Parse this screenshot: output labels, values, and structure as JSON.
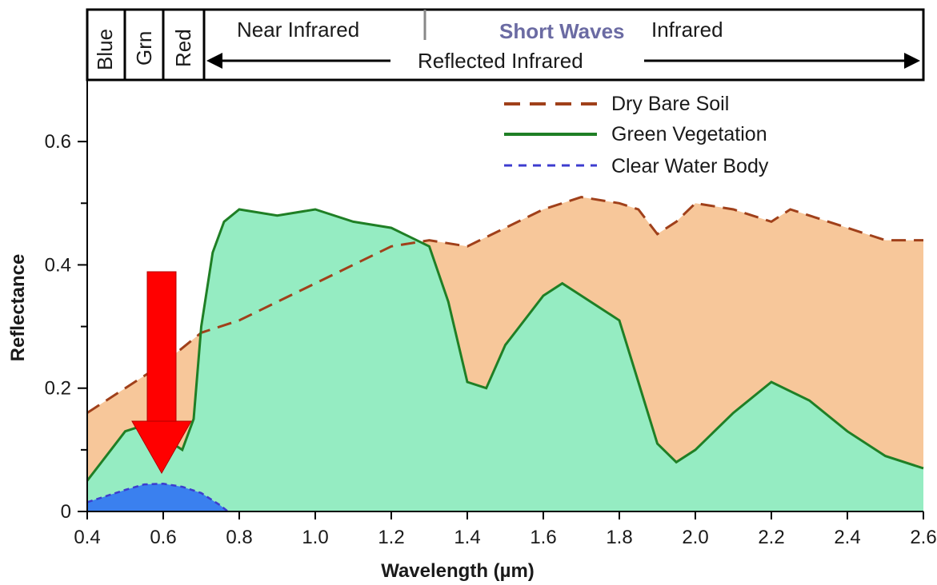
{
  "chart_data": {
    "type": "area",
    "xlabel": "Wavelength (µm)",
    "ylabel": "Reflectance",
    "xlim": [
      0.4,
      2.6
    ],
    "ylim": [
      0,
      0.7
    ],
    "x_ticks": [
      "0.4",
      "0.6",
      "0.8",
      "1.0",
      "1.2",
      "1.4",
      "1.6",
      "1.8",
      "2.0",
      "2.2",
      "2.4",
      "2.6"
    ],
    "y_ticks": [
      "0",
      "0.2",
      "0.4",
      "0.6"
    ],
    "legend_position": "top-right",
    "legend_labels": [
      "Dry Bare Soil",
      "Green Vegetation",
      "Clear Water Body"
    ],
    "series": [
      {
        "name": "Dry Bare Soil",
        "color": "#a0401a",
        "fill": "#f7c79a",
        "style": "long-dash",
        "points": [
          [
            0.4,
            0.16
          ],
          [
            0.5,
            0.2
          ],
          [
            0.6,
            0.24
          ],
          [
            0.7,
            0.29
          ],
          [
            0.8,
            0.31
          ],
          [
            0.9,
            0.34
          ],
          [
            1.0,
            0.37
          ],
          [
            1.1,
            0.4
          ],
          [
            1.2,
            0.43
          ],
          [
            1.3,
            0.44
          ],
          [
            1.4,
            0.43
          ],
          [
            1.5,
            0.46
          ],
          [
            1.6,
            0.49
          ],
          [
            1.7,
            0.51
          ],
          [
            1.8,
            0.5
          ],
          [
            1.85,
            0.49
          ],
          [
            1.9,
            0.45
          ],
          [
            1.95,
            0.47
          ],
          [
            2.0,
            0.5
          ],
          [
            2.1,
            0.49
          ],
          [
            2.2,
            0.47
          ],
          [
            2.25,
            0.49
          ],
          [
            2.3,
            0.48
          ],
          [
            2.4,
            0.46
          ],
          [
            2.5,
            0.44
          ],
          [
            2.6,
            0.44
          ]
        ]
      },
      {
        "name": "Green Vegetation",
        "color": "#1f7f25",
        "fill": "#95ecc2",
        "style": "solid",
        "points": [
          [
            0.4,
            0.05
          ],
          [
            0.45,
            0.09
          ],
          [
            0.5,
            0.13
          ],
          [
            0.55,
            0.14
          ],
          [
            0.6,
            0.12
          ],
          [
            0.65,
            0.1
          ],
          [
            0.68,
            0.15
          ],
          [
            0.7,
            0.3
          ],
          [
            0.73,
            0.42
          ],
          [
            0.76,
            0.47
          ],
          [
            0.8,
            0.49
          ],
          [
            0.9,
            0.48
          ],
          [
            1.0,
            0.49
          ],
          [
            1.1,
            0.47
          ],
          [
            1.2,
            0.46
          ],
          [
            1.3,
            0.43
          ],
          [
            1.35,
            0.34
          ],
          [
            1.4,
            0.21
          ],
          [
            1.45,
            0.2
          ],
          [
            1.5,
            0.27
          ],
          [
            1.6,
            0.35
          ],
          [
            1.65,
            0.37
          ],
          [
            1.7,
            0.35
          ],
          [
            1.8,
            0.31
          ],
          [
            1.85,
            0.21
          ],
          [
            1.9,
            0.11
          ],
          [
            1.95,
            0.08
          ],
          [
            2.0,
            0.1
          ],
          [
            2.1,
            0.16
          ],
          [
            2.2,
            0.21
          ],
          [
            2.3,
            0.18
          ],
          [
            2.4,
            0.13
          ],
          [
            2.5,
            0.09
          ],
          [
            2.6,
            0.07
          ]
        ]
      },
      {
        "name": "Clear Water Body",
        "color": "#3d3ccf",
        "fill": "#3a80ef",
        "style": "short-dash",
        "points": [
          [
            0.4,
            0.015
          ],
          [
            0.45,
            0.025
          ],
          [
            0.5,
            0.035
          ],
          [
            0.55,
            0.044
          ],
          [
            0.6,
            0.045
          ],
          [
            0.65,
            0.04
          ],
          [
            0.7,
            0.03
          ],
          [
            0.75,
            0.01
          ],
          [
            0.77,
            0.0
          ]
        ]
      }
    ],
    "bands": [
      {
        "label": "Blue"
      },
      {
        "label": "Grn"
      },
      {
        "label": "Red"
      }
    ],
    "regions": {
      "near_ir": "Near Infrared",
      "short_waves": "Short Waves",
      "infrared": "Infrared",
      "reflected_ir": "Reflected Infrared"
    },
    "annotation": {
      "type": "arrow",
      "color": "#ff0000",
      "points_to_x": 0.6,
      "points_to_y": 0.06
    }
  }
}
